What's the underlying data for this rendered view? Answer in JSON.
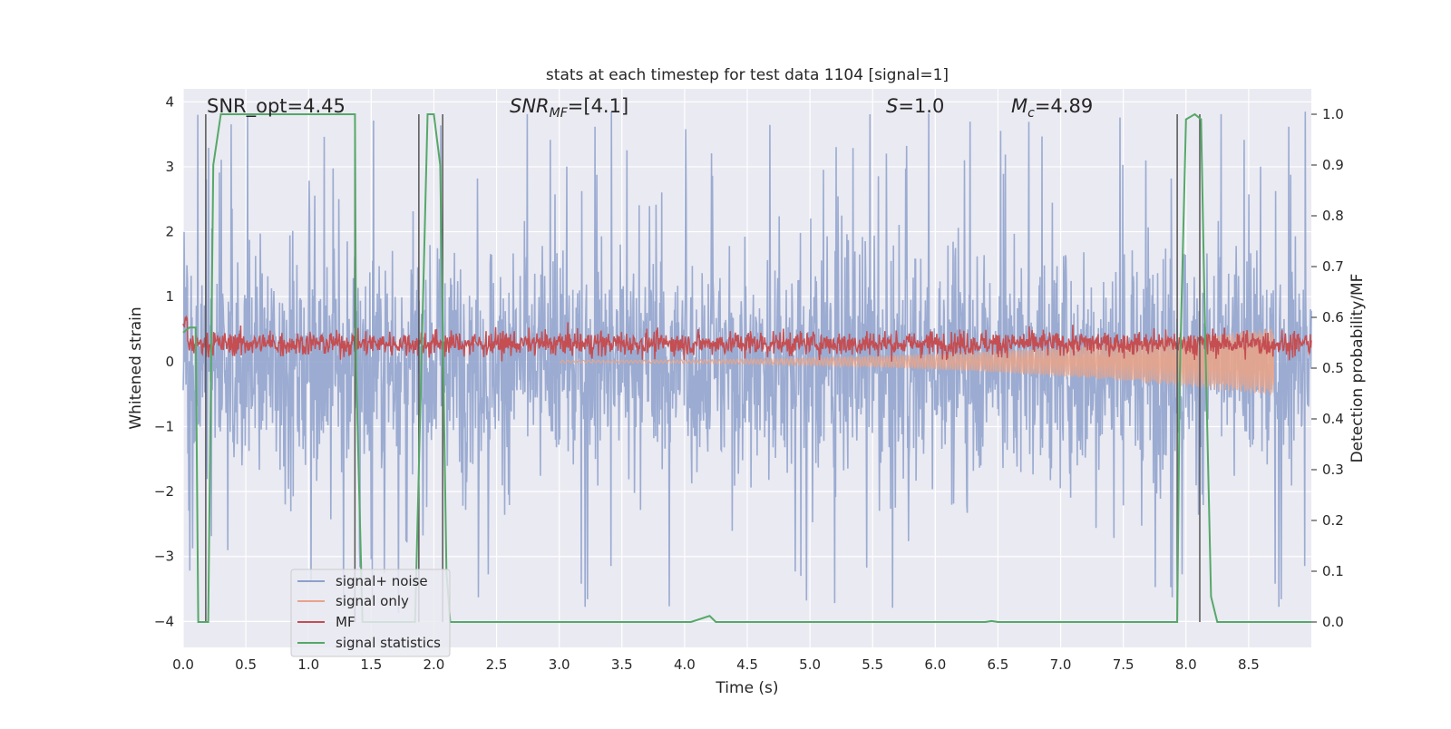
{
  "chart_data": {
    "type": "line",
    "title": "stats at each timestep for test data 1104 [signal=1]",
    "xlabel": "Time (s)",
    "ylabel": "Whitened strain",
    "y2label": "Detection probability/MF",
    "xlim": [
      0.0,
      9.0
    ],
    "ylim": [
      -4.4,
      4.2
    ],
    "y2lim": [
      -0.05,
      1.05
    ],
    "xticks": [
      "0.0",
      "0.5",
      "1.0",
      "1.5",
      "2.0",
      "2.5",
      "3.0",
      "3.5",
      "4.0",
      "4.5",
      "5.0",
      "5.5",
      "6.0",
      "6.5",
      "7.0",
      "7.5",
      "8.0",
      "8.5"
    ],
    "yticks": [
      "4",
      "3",
      "2",
      "1",
      "0",
      "−1",
      "−2",
      "−3",
      "−4"
    ],
    "y2ticks": [
      "1.0",
      "0.9",
      "0.8",
      "0.7",
      "0.6",
      "0.5",
      "0.4",
      "0.3",
      "0.2",
      "0.1",
      "0.0"
    ],
    "grid": true,
    "legend_position": "lower-left",
    "annotations": {
      "snr_opt": "SNR_opt=4.45",
      "snr_mf_main": "SNR",
      "snr_mf_sub": "MF",
      "snr_mf_value": "=[4.1]",
      "s_main": "S",
      "s_value": "=1.0",
      "mc_main": "M",
      "mc_sub": "c",
      "mc_value": "=4.89"
    },
    "series": [
      {
        "name": "signal+ noise",
        "color": "#8da0cb",
        "description_values": {
          "amplitude_typical": 2.2,
          "amplitude_peak": 3.9
        }
      },
      {
        "name": "signal only",
        "color": "#e8a48a",
        "chirp": {
          "start_t": 3.0,
          "end_t": 8.7,
          "end_amplitude_min": -0.5
        }
      },
      {
        "name": "MF",
        "color": "#c44e52",
        "baseline": 0.28,
        "amplitude": 0.3
      },
      {
        "name": "signal statistics",
        "color": "#55a868",
        "x": [
          0.0,
          0.05,
          0.1,
          0.12,
          0.2,
          0.24,
          0.3,
          1.37,
          1.38,
          1.43,
          1.5,
          1.8,
          1.85,
          1.95,
          2.0,
          2.05,
          2.1,
          2.13,
          4.05,
          4.2,
          4.25,
          6.4,
          6.45,
          6.5,
          7.93,
          7.95,
          8.0,
          8.07,
          8.12,
          8.15,
          8.2,
          8.25,
          9.0
        ],
        "y": [
          0.57,
          0.58,
          0.58,
          0.0,
          0.0,
          0.9,
          1.0,
          1.0,
          0.5,
          0.0,
          0.0,
          0.0,
          0.0,
          1.0,
          1.0,
          0.9,
          0.1,
          0.0,
          0.0,
          0.012,
          0.0,
          0.0,
          0.002,
          0.0,
          0.0,
          0.48,
          0.99,
          1.0,
          0.99,
          0.6,
          0.05,
          0.0,
          0.0
        ]
      }
    ],
    "vertical_markers": [
      0.18,
      1.37,
      1.88,
      2.07,
      7.93,
      8.11
    ],
    "marker_color": "#555555"
  }
}
